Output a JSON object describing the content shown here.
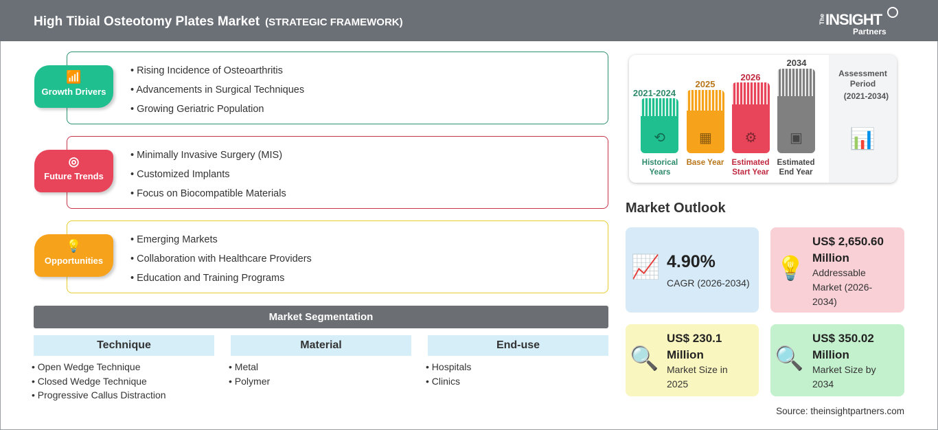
{
  "header": {
    "title": "High Tibial Osteotomy Plates Market",
    "subtitle": "(STRATEGIC FRAMEWORK)",
    "logo_text": "The INSIGHT Partners"
  },
  "sections": [
    {
      "label": "Growth Drivers",
      "icon": "growth-chart-icon",
      "color": "#1fbf8f",
      "items": [
        "Rising Incidence of Osteoarthritis",
        "Advancements in Surgical Techniques",
        "Growing Geriatric Population"
      ]
    },
    {
      "label": "Future Trends",
      "icon": "target-icon",
      "color": "#e8455a",
      "items": [
        "Minimally Invasive Surgery (MIS)",
        "Customized Implants",
        "Focus on Biocompatible Materials"
      ]
    },
    {
      "label": "Opportunities",
      "icon": "lightbulb-hand-icon",
      "color": "#f7a21b",
      "items": [
        "Emerging Markets",
        "Collaboration with Healthcare Providers",
        "Education and Training Programs"
      ]
    }
  ],
  "segmentation": {
    "title": "Market Segmentation",
    "columns": [
      {
        "header": "Technique",
        "items": [
          "Open Wedge Technique",
          "Closed Wedge Technique",
          "Progressive Callus Distraction"
        ]
      },
      {
        "header": "Material",
        "items": [
          "Metal",
          "Polymer"
        ]
      },
      {
        "header": "End-use",
        "items": [
          "Hospitals",
          "Clinics"
        ]
      }
    ]
  },
  "timeline": {
    "periods": [
      {
        "year": "2021-2024",
        "label": "Historical Years",
        "color": "#1fbf8f",
        "text_color": "#2e8a6a"
      },
      {
        "year": "2025",
        "label": "Base Year",
        "color": "#f7a21b",
        "text_color": "#b8761a"
      },
      {
        "year": "2026",
        "label": "Estimated Start Year",
        "color": "#e8455a",
        "text_color": "#c0283f"
      },
      {
        "year": "2034",
        "label": "Estimated End Year",
        "color": "#808080",
        "text_color": "#444444"
      }
    ],
    "assessment_title": "Assessment Period",
    "assessment_range": "(2021-2034)"
  },
  "outlook": {
    "title": "Market Outlook",
    "cards": [
      {
        "value": "4.90%",
        "label": "CAGR (2026-2034)",
        "bg": "#d6eaf7"
      },
      {
        "value": "US$ 2,650.60 Million",
        "label": "Addressable Market (2026-2034)",
        "bg": "#f9d0d6"
      },
      {
        "value": "US$ 230.1 Million",
        "label": "Market Size in 2025",
        "bg": "#faf6bf"
      },
      {
        "value": "US$ 350.02 Million",
        "label": "Market Size by 2034",
        "bg": "#c3f0cd"
      }
    ]
  },
  "source": "Source: theinsightpartners.com"
}
